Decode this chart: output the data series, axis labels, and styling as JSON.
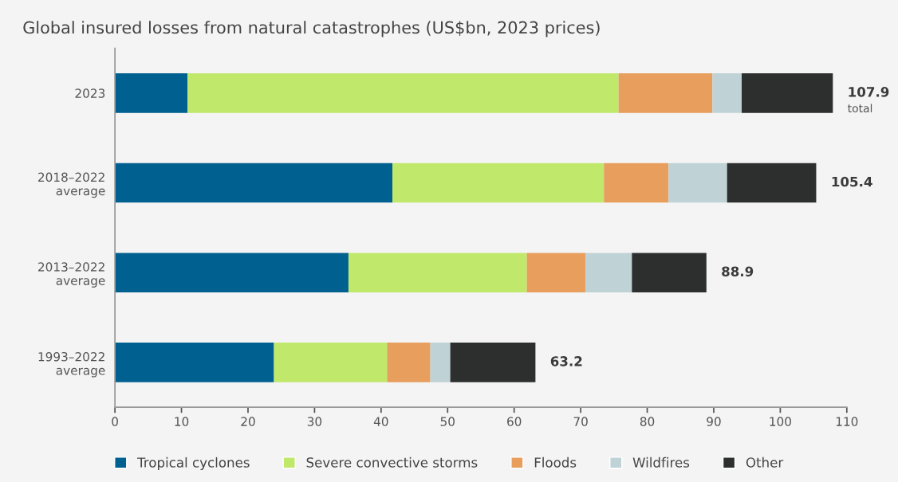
{
  "chart_data": {
    "type": "bar",
    "orientation": "horizontal",
    "stacked": true,
    "title": "Global insured losses from natural catastrophes (US$bn, 2023 prices)",
    "categories": [
      "2023",
      "2018–2022\naverage",
      "2013–2022\naverage",
      "1993–2022\naverage"
    ],
    "series": [
      {
        "name": "Tropical cyclones",
        "color": "#006090",
        "values": [
          10.9,
          41.7,
          35.1,
          23.9
        ]
      },
      {
        "name": "Severe convective storms",
        "color": "#c0e86a",
        "values": [
          64.8,
          31.8,
          26.8,
          17.0
        ]
      },
      {
        "name": "Floods",
        "color": "#e89e5c",
        "values": [
          14.1,
          9.7,
          8.8,
          6.5
        ]
      },
      {
        "name": "Wildfires",
        "color": "#bfd2d6",
        "values": [
          4.4,
          8.8,
          7.0,
          3.0
        ]
      },
      {
        "name": "Other",
        "color": "#2d2f2e",
        "values": [
          13.7,
          13.4,
          11.2,
          12.8
        ]
      }
    ],
    "totals": [
      "107.9",
      "105.4",
      "88.9",
      "63.2"
    ],
    "annotations": [
      {
        "text": "total",
        "x": 107.9,
        "y": "2023"
      }
    ],
    "xlim": [
      0,
      110
    ],
    "xticks": [
      0,
      10,
      20,
      30,
      40,
      50,
      60,
      70,
      80,
      90,
      100,
      110
    ],
    "grid": false,
    "legend": "bottom"
  }
}
